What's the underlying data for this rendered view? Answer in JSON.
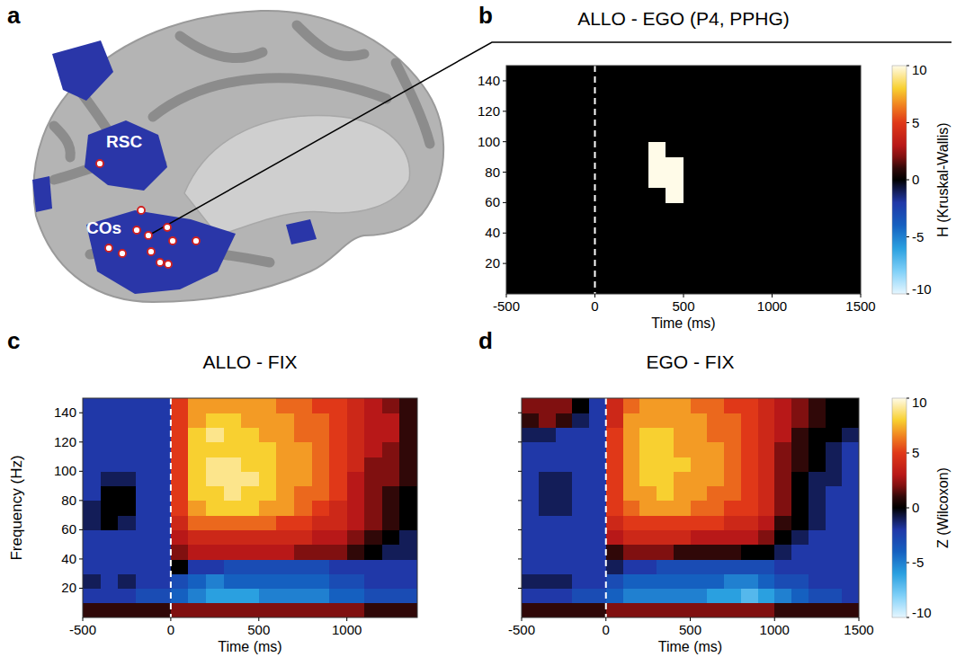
{
  "brain_panel": {
    "panel_label": "a",
    "labels": [
      "RSC",
      "COs"
    ]
  },
  "chart_data": [
    {
      "type": "heatmap",
      "panel_label": "b",
      "title": "ALLO - EGO (P4, PPHG)",
      "x_label": "Time (ms)",
      "xlim": [
        -500,
        1500
      ],
      "xticks": [
        -500,
        0,
        500,
        1000,
        1500
      ],
      "ylim": [
        0,
        150
      ],
      "yticks": [
        20,
        40,
        60,
        80,
        100,
        120,
        140
      ],
      "reference_x": 0,
      "x_bins": [
        -500,
        -400,
        -300,
        -200,
        -100,
        0,
        100,
        200,
        300,
        400,
        500,
        600,
        700,
        800,
        900,
        1000,
        1100,
        1200,
        1300,
        1400,
        1500
      ],
      "y_bins": [
        0,
        10,
        20,
        30,
        40,
        50,
        60,
        70,
        80,
        90,
        100,
        110,
        120,
        130,
        140,
        150
      ],
      "z": [
        [
          0,
          0,
          0,
          0,
          0,
          0,
          0,
          0,
          0,
          0,
          0,
          0,
          0,
          0,
          0,
          0,
          0,
          0,
          0,
          0
        ],
        [
          0,
          0,
          0,
          0,
          0,
          0,
          0,
          0,
          0,
          0,
          0,
          0,
          0,
          0,
          0,
          0,
          0,
          0,
          0,
          0
        ],
        [
          0,
          0,
          0,
          0,
          0,
          0,
          0,
          0,
          0,
          0,
          0,
          0,
          0,
          0,
          0,
          0,
          0,
          0,
          0,
          0
        ],
        [
          0,
          0,
          0,
          0,
          0,
          0,
          0,
          0,
          0,
          0,
          0,
          0,
          0,
          0,
          0,
          0,
          0,
          0,
          0,
          0
        ],
        [
          0,
          0,
          0,
          0,
          0,
          0,
          0,
          0,
          0,
          0,
          0,
          0,
          0,
          0,
          0,
          0,
          0,
          0,
          0,
          0
        ],
        [
          0,
          0,
          0,
          0,
          0,
          0,
          0,
          0,
          0,
          0,
          0,
          0,
          0,
          0,
          0,
          0,
          0,
          0,
          0,
          0
        ],
        [
          0,
          0,
          0,
          0,
          0,
          0,
          0,
          0,
          0,
          10,
          0,
          0,
          0,
          0,
          0,
          0,
          0,
          0,
          0,
          0
        ],
        [
          0,
          0,
          0,
          0,
          0,
          0,
          0,
          0,
          10,
          10,
          0,
          0,
          0,
          0,
          0,
          0,
          0,
          0,
          0,
          0
        ],
        [
          0,
          0,
          0,
          0,
          0,
          0,
          0,
          0,
          10,
          10,
          0,
          0,
          0,
          0,
          0,
          0,
          0,
          0,
          0,
          0
        ],
        [
          0,
          0,
          0,
          0,
          0,
          0,
          0,
          0,
          10,
          0,
          0,
          0,
          0,
          0,
          0,
          0,
          0,
          0,
          0,
          0
        ],
        [
          0,
          0,
          0,
          0,
          0,
          0,
          0,
          0,
          0,
          0,
          0,
          0,
          0,
          0,
          0,
          0,
          0,
          0,
          0,
          0
        ],
        [
          0,
          0,
          0,
          0,
          0,
          0,
          0,
          0,
          0,
          0,
          0,
          0,
          0,
          0,
          0,
          0,
          0,
          0,
          0,
          0
        ],
        [
          0,
          0,
          0,
          0,
          0,
          0,
          0,
          0,
          0,
          0,
          0,
          0,
          0,
          0,
          0,
          0,
          0,
          0,
          0,
          0
        ],
        [
          0,
          0,
          0,
          0,
          0,
          0,
          0,
          0,
          0,
          0,
          0,
          0,
          0,
          0,
          0,
          0,
          0,
          0,
          0,
          0
        ],
        [
          0,
          0,
          0,
          0,
          0,
          0,
          0,
          0,
          0,
          0,
          0,
          0,
          0,
          0,
          0,
          0,
          0,
          0,
          0,
          0
        ]
      ],
      "colorbar": {
        "label": "H (Kruskal-Wallis)",
        "range": [
          -10,
          10
        ],
        "ticks": [
          -10,
          -5,
          0,
          5,
          10
        ]
      }
    },
    {
      "type": "heatmap",
      "panel_label": "c",
      "title": "ALLO - FIX",
      "x_label": "Time (ms)",
      "y_label": "Frequency (Hz)",
      "xlim": [
        -500,
        1400
      ],
      "xticks": [
        -500,
        0,
        500,
        1000
      ],
      "ylim": [
        0,
        150
      ],
      "yticks": [
        20,
        40,
        60,
        80,
        100,
        120,
        140
      ],
      "reference_x": 0,
      "x_bins": [
        -500,
        -400,
        -300,
        -200,
        -100,
        0,
        100,
        200,
        300,
        400,
        500,
        600,
        700,
        800,
        900,
        1000,
        1100,
        1200,
        1300,
        1400
      ],
      "y_bins": [
        0,
        10,
        20,
        30,
        40,
        50,
        60,
        70,
        80,
        90,
        100,
        110,
        120,
        130,
        140,
        150
      ],
      "z": [
        [
          1,
          1,
          1,
          1,
          1,
          2,
          2,
          2,
          2,
          2,
          2,
          2,
          2,
          2,
          2,
          2,
          1,
          1,
          1
        ],
        [
          -2,
          -2,
          -2,
          -3,
          -3,
          -4,
          -5,
          -6,
          -6,
          -6,
          -5,
          -5,
          -5,
          -5,
          -4,
          -4,
          -3,
          -3,
          -3
        ],
        [
          -1,
          -2,
          -1,
          -2,
          -2,
          -3,
          -4,
          -5,
          -4,
          -4,
          -4,
          -4,
          -4,
          -4,
          -3,
          -3,
          -2,
          -2,
          -2
        ],
        [
          -2,
          -2,
          -2,
          -2,
          -2,
          0,
          -2,
          -2,
          -3,
          -3,
          -3,
          -3,
          -3,
          -3,
          -2,
          -2,
          -2,
          -2,
          -2
        ],
        [
          -2,
          -2,
          -2,
          -2,
          -2,
          2,
          3,
          3,
          3,
          3,
          3,
          3,
          2,
          2,
          2,
          1,
          0,
          -1,
          -1
        ],
        [
          -2,
          -2,
          -2,
          -2,
          -2,
          3,
          4,
          4,
          4,
          4,
          4,
          4,
          4,
          3,
          3,
          2,
          1,
          0,
          -1
        ],
        [
          -1,
          0,
          -1,
          -2,
          -2,
          4,
          6,
          6,
          6,
          6,
          6,
          5,
          5,
          4,
          4,
          3,
          2,
          1,
          0
        ],
        [
          -1,
          0,
          0,
          -2,
          -2,
          5,
          7,
          8,
          8,
          8,
          7,
          7,
          6,
          5,
          4,
          3,
          2,
          1,
          0
        ],
        [
          -2,
          0,
          0,
          -2,
          -2,
          5,
          8,
          8,
          9,
          8,
          8,
          7,
          6,
          6,
          5,
          3,
          2,
          1,
          0
        ],
        [
          -2,
          -1,
          -1,
          -2,
          -2,
          5,
          8,
          9,
          9,
          9,
          8,
          7,
          7,
          6,
          5,
          3,
          2,
          2,
          1
        ],
        [
          -2,
          -2,
          -2,
          -2,
          -2,
          5,
          8,
          9,
          9,
          8,
          8,
          7,
          7,
          6,
          5,
          4,
          2,
          2,
          1
        ],
        [
          -2,
          -2,
          -2,
          -2,
          -2,
          5,
          8,
          8,
          8,
          8,
          8,
          7,
          7,
          6,
          5,
          4,
          3,
          2,
          1
        ],
        [
          -2,
          -2,
          -2,
          -2,
          -2,
          5,
          8,
          9,
          8,
          8,
          7,
          7,
          6,
          6,
          5,
          4,
          3,
          3,
          1
        ],
        [
          -2,
          -2,
          -2,
          -2,
          -2,
          5,
          7,
          8,
          8,
          7,
          7,
          7,
          6,
          6,
          5,
          4,
          3,
          3,
          1
        ],
        [
          -2,
          -2,
          -2,
          -2,
          -2,
          5,
          7,
          7,
          7,
          7,
          7,
          6,
          6,
          5,
          5,
          4,
          3,
          2,
          1
        ]
      ]
    },
    {
      "type": "heatmap",
      "panel_label": "d",
      "title": "EGO - FIX",
      "x_label": "Time (ms)",
      "xlim": [
        -500,
        1500
      ],
      "xticks": [
        -500,
        0,
        500,
        1000,
        1500
      ],
      "ylim": [
        0,
        150
      ],
      "yticks": [
        20,
        40,
        60,
        80,
        100,
        120,
        140
      ],
      "tick_labels": "x",
      "reference_x": 0,
      "x_bins": [
        -500,
        -400,
        -300,
        -200,
        -100,
        0,
        100,
        200,
        300,
        400,
        500,
        600,
        700,
        800,
        900,
        1000,
        1100,
        1200,
        1300,
        1400,
        1500
      ],
      "y_bins": [
        0,
        10,
        20,
        30,
        40,
        50,
        60,
        70,
        80,
        90,
        100,
        110,
        120,
        130,
        140,
        150
      ],
      "z": [
        [
          1,
          1,
          1,
          1,
          1,
          2,
          2,
          2,
          2,
          2,
          2,
          2,
          2,
          2,
          2,
          1,
          1,
          1,
          1,
          1
        ],
        [
          -2,
          -2,
          -2,
          -3,
          -3,
          -4,
          -5,
          -5,
          -5,
          -5,
          -5,
          -6,
          -6,
          -7,
          -6,
          -5,
          -4,
          -3,
          -3,
          -2
        ],
        [
          -1,
          -1,
          -1,
          -2,
          -2,
          -3,
          -4,
          -4,
          -4,
          -4,
          -4,
          -4,
          -5,
          -5,
          -4,
          -3,
          -3,
          -2,
          -2,
          -2
        ],
        [
          -2,
          -2,
          -2,
          -2,
          -2,
          -1,
          -2,
          -2,
          -3,
          -3,
          -3,
          -3,
          -3,
          -3,
          -3,
          -2,
          -2,
          -2,
          -2,
          -2
        ],
        [
          -2,
          -2,
          -2,
          -2,
          -2,
          1,
          2,
          2,
          2,
          1,
          1,
          1,
          1,
          0,
          0,
          -1,
          -2,
          -2,
          -2,
          -2
        ],
        [
          -2,
          -2,
          -2,
          -2,
          -2,
          3,
          4,
          4,
          4,
          4,
          3,
          3,
          3,
          3,
          2,
          0,
          -1,
          -2,
          -2,
          -2
        ],
        [
          -2,
          -2,
          -2,
          -2,
          -2,
          4,
          5,
          5,
          5,
          5,
          5,
          5,
          4,
          4,
          3,
          1,
          0,
          -1,
          -2,
          -2
        ],
        [
          -2,
          -1,
          -1,
          -2,
          -2,
          5,
          6,
          7,
          7,
          7,
          6,
          6,
          5,
          5,
          4,
          2,
          0,
          -1,
          -2,
          -2
        ],
        [
          -2,
          -1,
          -1,
          -2,
          -2,
          5,
          7,
          7,
          8,
          7,
          7,
          6,
          6,
          5,
          4,
          2,
          0,
          -1,
          -2,
          -2
        ],
        [
          -2,
          -1,
          -1,
          -2,
          -2,
          5,
          7,
          8,
          8,
          7,
          7,
          7,
          6,
          5,
          4,
          2,
          0,
          -1,
          -1,
          -2
        ],
        [
          -2,
          -2,
          -2,
          -2,
          -2,
          5,
          7,
          8,
          8,
          8,
          7,
          7,
          6,
          5,
          4,
          2,
          1,
          0,
          -1,
          -2
        ],
        [
          -2,
          -2,
          -2,
          -2,
          -2,
          5,
          7,
          8,
          8,
          7,
          7,
          7,
          6,
          5,
          4,
          2,
          1,
          0,
          -1,
          -2
        ],
        [
          -1,
          -1,
          -2,
          -2,
          -2,
          5,
          7,
          8,
          8,
          7,
          7,
          6,
          6,
          5,
          4,
          3,
          1,
          0,
          0,
          -1
        ],
        [
          1,
          2,
          1,
          -1,
          -2,
          4,
          7,
          7,
          7,
          7,
          7,
          6,
          6,
          5,
          4,
          3,
          2,
          1,
          0,
          0
        ],
        [
          2,
          2,
          2,
          0,
          -2,
          4,
          6,
          7,
          7,
          7,
          6,
          6,
          5,
          5,
          4,
          3,
          2,
          1,
          0,
          0
        ]
      ],
      "colorbar": {
        "label": "Z (Wilcoxon)",
        "range": [
          -10,
          10
        ],
        "ticks": [
          -10,
          -5,
          0,
          5,
          10
        ]
      }
    }
  ]
}
